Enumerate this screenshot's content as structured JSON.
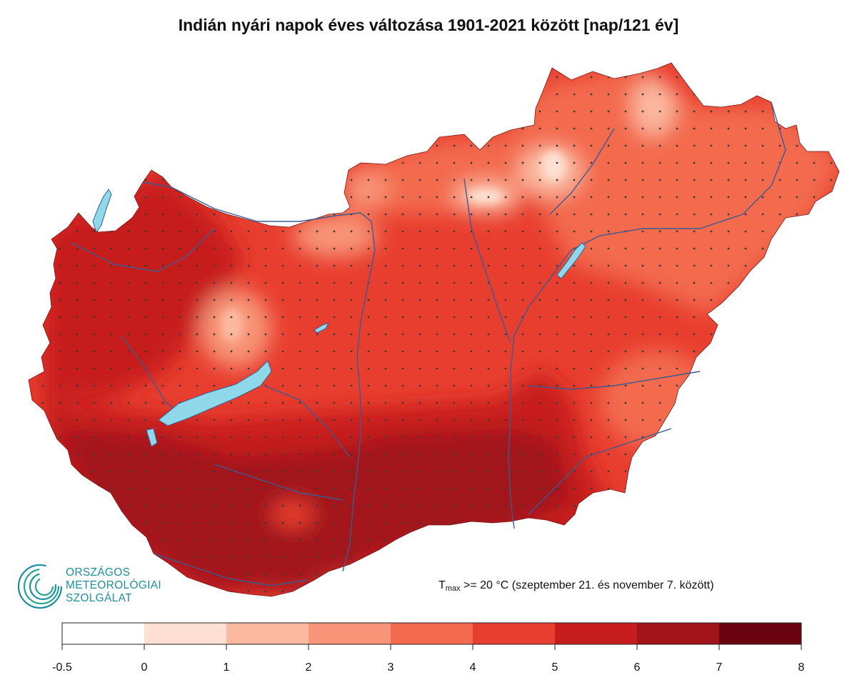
{
  "title": "Indián nyári napok éves változása 1901-2021 között [nap/121 év]",
  "annotation": {
    "prefix": "T",
    "subscript": "max",
    "text": " >= 20 °C (szeptember 21. és november 7. között)"
  },
  "logo": {
    "lines": [
      "ORSZÁGOS",
      "METEOROLÓGIAI",
      "SZOLGÁLAT"
    ],
    "color": "#1f8fa0"
  },
  "legend": {
    "breaks": [
      -0.5,
      0,
      1,
      2,
      3,
      4,
      5,
      6,
      7,
      8
    ],
    "tick_labels": [
      "-0.5",
      "0",
      "1",
      "2",
      "3",
      "4",
      "5",
      "6",
      "7",
      "8"
    ],
    "colors": [
      "#ffffff",
      "#fde0d2",
      "#fbb9a0",
      "#f89477",
      "#f36a4e",
      "#e83e2f",
      "#c71c1e",
      "#a2131a",
      "#6a0510"
    ]
  },
  "map_colors": {
    "lake": "#8fd8ea",
    "river": "#3b5b93",
    "dot": "#3a3a3a"
  }
}
